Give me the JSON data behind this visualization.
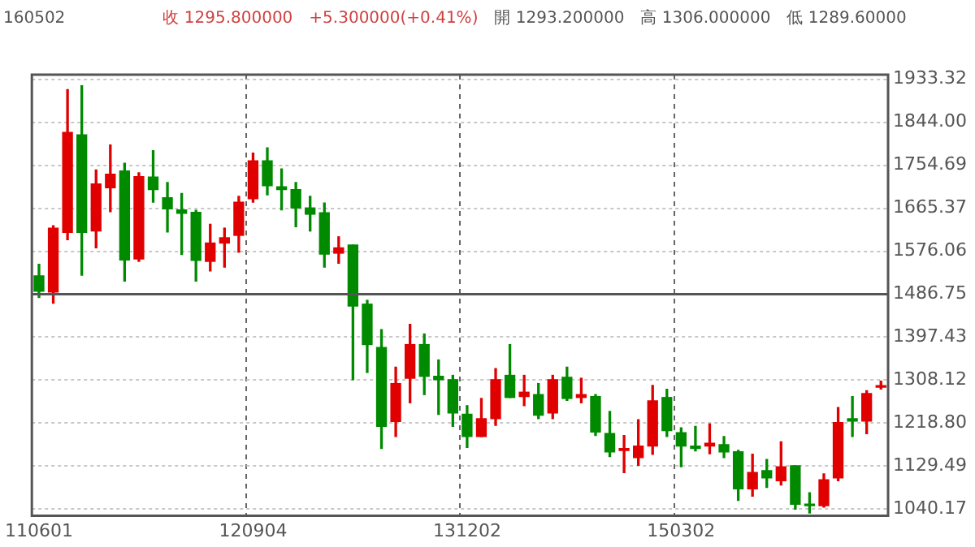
{
  "chart_data": {
    "type": "candlestick",
    "annotations": [
      "160502",
      "收 1295.800000",
      "+5.300000(+0.41%)",
      "開 1293.200000",
      "高 1306.000000",
      "低 1289.60000"
    ],
    "categories": [
      "110601",
      null,
      null,
      null,
      null,
      null,
      null,
      null,
      null,
      null,
      null,
      null,
      null,
      null,
      null,
      "120904",
      null,
      null,
      null,
      null,
      null,
      null,
      null,
      null,
      null,
      null,
      null,
      null,
      null,
      null,
      "131202",
      null,
      null,
      null,
      null,
      null,
      null,
      null,
      null,
      null,
      null,
      null,
      null,
      null,
      null,
      "150302",
      null,
      null,
      null,
      null,
      null,
      null,
      null,
      null,
      null,
      null,
      null,
      null,
      null,
      null
    ],
    "ohlc": [
      [
        1525,
        1549,
        1480,
        1493
      ],
      [
        1491,
        1629,
        1468,
        1624
      ],
      [
        1615,
        1912,
        1600,
        1823
      ],
      [
        1818,
        1920,
        1526,
        1615
      ],
      [
        1618,
        1745,
        1583,
        1716
      ],
      [
        1708,
        1797,
        1658,
        1736
      ],
      [
        1743,
        1759,
        1514,
        1558
      ],
      [
        1560,
        1739,
        1555,
        1731
      ],
      [
        1730,
        1785,
        1678,
        1704
      ],
      [
        1687,
        1719,
        1616,
        1664
      ],
      [
        1662,
        1696,
        1569,
        1655
      ],
      [
        1657,
        1661,
        1514,
        1557
      ],
      [
        1555,
        1632,
        1535,
        1593
      ],
      [
        1593,
        1624,
        1543,
        1604
      ],
      [
        1609,
        1690,
        1574,
        1678
      ],
      [
        1685,
        1780,
        1678,
        1764
      ],
      [
        1764,
        1791,
        1693,
        1712
      ],
      [
        1710,
        1747,
        1662,
        1704
      ],
      [
        1704,
        1719,
        1627,
        1666
      ],
      [
        1666,
        1690,
        1618,
        1653
      ],
      [
        1656,
        1676,
        1543,
        1570
      ],
      [
        1572,
        1606,
        1551,
        1583
      ],
      [
        1589,
        1589,
        1309,
        1462
      ],
      [
        1466,
        1474,
        1324,
        1382
      ],
      [
        1376,
        1413,
        1166,
        1212
      ],
      [
        1222,
        1335,
        1191,
        1301
      ],
      [
        1312,
        1424,
        1261,
        1382
      ],
      [
        1382,
        1404,
        1278,
        1316
      ],
      [
        1316,
        1350,
        1237,
        1309
      ],
      [
        1309,
        1318,
        1212,
        1240
      ],
      [
        1237,
        1255,
        1168,
        1191
      ],
      [
        1191,
        1270,
        1191,
        1228
      ],
      [
        1228,
        1332,
        1214,
        1309
      ],
      [
        1318,
        1382,
        1272,
        1272
      ],
      [
        1274,
        1318,
        1255,
        1283
      ],
      [
        1278,
        1301,
        1228,
        1235
      ],
      [
        1240,
        1318,
        1228,
        1309
      ],
      [
        1314,
        1335,
        1266,
        1270
      ],
      [
        1272,
        1312,
        1261,
        1278
      ],
      [
        1274,
        1278,
        1193,
        1200
      ],
      [
        1197,
        1243,
        1149,
        1159
      ],
      [
        1162,
        1193,
        1116,
        1166
      ],
      [
        1147,
        1226,
        1131,
        1171
      ],
      [
        1171,
        1297,
        1154,
        1265
      ],
      [
        1272,
        1289,
        1191,
        1203
      ],
      [
        1199,
        1209,
        1128,
        1171
      ],
      [
        1171,
        1212,
        1161,
        1166
      ],
      [
        1171,
        1217,
        1155,
        1177
      ],
      [
        1174,
        1191,
        1147,
        1159
      ],
      [
        1159,
        1162,
        1058,
        1082
      ],
      [
        1082,
        1154,
        1067,
        1116
      ],
      [
        1120,
        1143,
        1085,
        1105
      ],
      [
        1099,
        1180,
        1090,
        1128
      ],
      [
        1130,
        1130,
        1040,
        1050
      ],
      [
        1050,
        1074,
        1032,
        1047
      ],
      [
        1047,
        1113,
        1044,
        1101
      ],
      [
        1105,
        1251,
        1099,
        1220
      ],
      [
        1228,
        1274,
        1191,
        1223
      ],
      [
        1223,
        1286,
        1197,
        1280
      ],
      [
        1293.2,
        1306,
        1289.6,
        1295.8
      ]
    ],
    "colors": [
      "#008a00",
      "#e00000",
      "#e00000",
      "#008a00",
      "#e00000",
      "#e00000",
      "#008a00",
      "#e00000",
      "#008a00",
      "#008a00",
      "#008a00",
      "#008a00",
      "#e00000",
      "#e00000",
      "#e00000",
      "#e00000",
      "#008a00",
      "#008a00",
      "#008a00",
      "#008a00",
      "#008a00",
      "#e00000",
      "#008a00",
      "#008a00",
      "#008a00",
      "#e00000",
      "#e00000",
      "#008a00",
      "#008a00",
      "#008a00",
      "#008a00",
      "#e00000",
      "#e00000",
      "#008a00",
      "#e00000",
      "#008a00",
      "#e00000",
      "#008a00",
      "#e00000",
      "#008a00",
      "#008a00",
      "#e00000",
      "#e00000",
      "#e00000",
      "#008a00",
      "#008a00",
      "#008a00",
      "#e00000",
      "#008a00",
      "#008a00",
      "#e00000",
      "#008a00",
      "#e00000",
      "#008a00",
      "#008a00",
      "#e00000",
      "#e00000",
      "#008a00",
      "#e00000",
      "#e00000"
    ],
    "ylim": [
      1026,
      1943
    ],
    "yticks": [
      1040.17,
      1129.49,
      {
        "value": 1218.8,
        "label": "1218.80"
      },
      1308.12,
      1397.43,
      1486.75,
      1576.06,
      1665.37,
      1754.69,
      {
        "value": 1844,
        "label": "1844.00"
      },
      1933.32
    ],
    "ref_lines": [
      {
        "axis": "y",
        "value": 1486.75,
        "color": "#555555"
      }
    ],
    "grid": true
  }
}
